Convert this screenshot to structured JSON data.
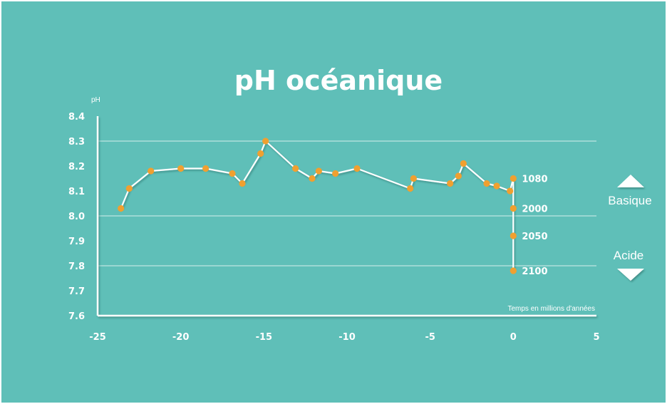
{
  "chart_data": {
    "type": "line",
    "title": "pH océanique",
    "ylabel": "pH",
    "xlabel": "Temps en millions d'années",
    "xlim": [
      -25,
      5
    ],
    "ylim": [
      7.6,
      8.4
    ],
    "x_ticks": [
      "-25",
      "-20",
      "-15",
      "-10",
      "-5",
      "0",
      "5"
    ],
    "y_ticks": [
      "8.4",
      "8.3",
      "8.2",
      "8.1",
      "8.0",
      "7.9",
      "7.8",
      "7.7",
      "7.6"
    ],
    "gridlines_y": [
      8.3,
      8.0,
      7.8
    ],
    "series": [
      {
        "x": [
          -23.6,
          -23.1,
          -21.8,
          -20.0,
          -18.5,
          -16.9,
          -16.3,
          -15.2,
          -14.9,
          -13.1,
          -12.1,
          -11.7,
          -10.7,
          -9.4,
          -6.2,
          -6.0,
          -3.8,
          -3.3,
          -3.0,
          -1.6,
          -1.0,
          -0.2,
          0.0,
          0.0,
          0.0,
          0.0
        ],
        "y": [
          8.03,
          8.11,
          8.18,
          8.19,
          8.19,
          8.17,
          8.13,
          8.25,
          8.3,
          8.19,
          8.15,
          8.18,
          8.17,
          8.19,
          8.11,
          8.15,
          8.13,
          8.16,
          8.21,
          8.13,
          8.12,
          8.1,
          8.15,
          8.03,
          7.92,
          7.78
        ]
      }
    ],
    "annotations": [
      {
        "label": "1080",
        "x": 0,
        "y": 8.15
      },
      {
        "label": "2000",
        "x": 0,
        "y": 8.03
      },
      {
        "label": "2050",
        "x": 0,
        "y": 7.92
      },
      {
        "label": "2100",
        "x": 0,
        "y": 7.78
      }
    ]
  },
  "legend": {
    "up_label": "Basique",
    "down_label": "Acide"
  },
  "colors": {
    "background": "#5fbfb8",
    "line": "#ffffff",
    "marker": "#f0a030"
  }
}
